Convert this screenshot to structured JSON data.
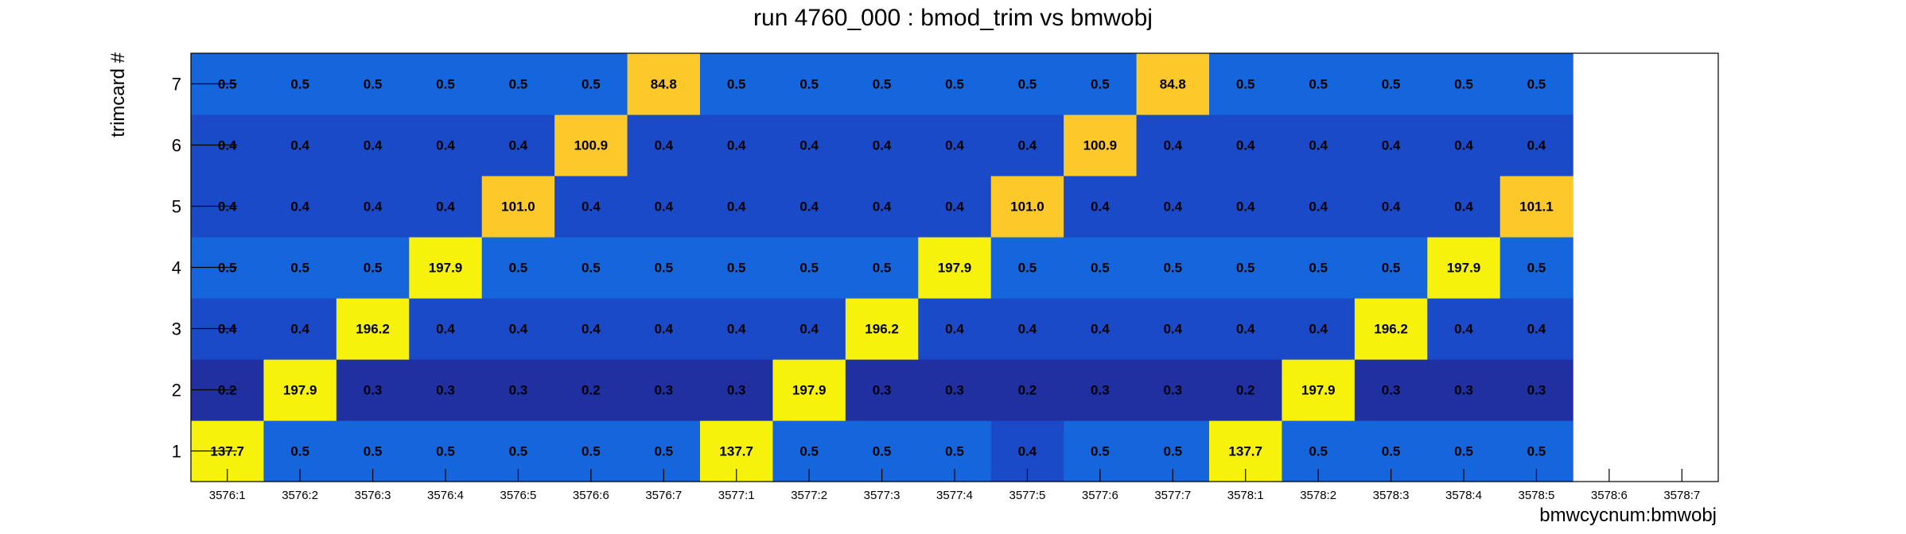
{
  "chart_data": {
    "type": "heatmap",
    "title": "run 4760_000 : bmod_trim vs bmwobj",
    "xlabel": "bmwcycnum:bmwobj",
    "ylabel": "trimcard #",
    "x_categories": [
      "3576:1",
      "3576:2",
      "3576:3",
      "3576:4",
      "3576:5",
      "3576:6",
      "3576:7",
      "3577:1",
      "3577:2",
      "3577:3",
      "3577:4",
      "3577:5",
      "3577:6",
      "3577:7",
      "3578:1",
      "3578:2",
      "3578:3",
      "3578:4",
      "3578:5",
      "3578:6",
      "3578:7"
    ],
    "y_categories": [
      "1",
      "2",
      "3",
      "4",
      "5",
      "6",
      "7"
    ],
    "values": [
      [
        137.7,
        0.5,
        0.5,
        0.5,
        0.5,
        0.5,
        0.5,
        137.7,
        0.5,
        0.5,
        0.5,
        0.4,
        0.5,
        0.5,
        137.7,
        0.5,
        0.5,
        0.5,
        0.5,
        null,
        null
      ],
      [
        0.2,
        197.9,
        0.3,
        0.3,
        0.3,
        0.2,
        0.3,
        0.3,
        197.9,
        0.3,
        0.3,
        0.2,
        0.3,
        0.3,
        0.2,
        197.9,
        0.3,
        0.3,
        0.3,
        null,
        null
      ],
      [
        0.4,
        0.4,
        196.2,
        0.4,
        0.4,
        0.4,
        0.4,
        0.4,
        0.4,
        196.2,
        0.4,
        0.4,
        0.4,
        0.4,
        0.4,
        0.4,
        196.2,
        0.4,
        0.4,
        null,
        null
      ],
      [
        0.5,
        0.5,
        0.5,
        197.9,
        0.5,
        0.5,
        0.5,
        0.5,
        0.5,
        0.5,
        197.9,
        0.5,
        0.5,
        0.5,
        0.5,
        0.5,
        0.5,
        197.9,
        0.5,
        null,
        null
      ],
      [
        0.4,
        0.4,
        0.4,
        0.4,
        101.0,
        0.4,
        0.4,
        0.4,
        0.4,
        0.4,
        0.4,
        101.0,
        0.4,
        0.4,
        0.4,
        0.4,
        0.4,
        0.4,
        101.1,
        null,
        null
      ],
      [
        0.4,
        0.4,
        0.4,
        0.4,
        0.4,
        100.9,
        0.4,
        0.4,
        0.4,
        0.4,
        0.4,
        0.4,
        100.9,
        0.4,
        0.4,
        0.4,
        0.4,
        0.4,
        0.4,
        null,
        null
      ],
      [
        0.5,
        0.5,
        0.5,
        0.5,
        0.5,
        0.5,
        84.8,
        0.5,
        0.5,
        0.5,
        0.5,
        0.5,
        0.5,
        84.8,
        0.5,
        0.5,
        0.5,
        0.5,
        0.5,
        null,
        null
      ]
    ],
    "colors": {
      "very_low": "#2030a0",
      "low": "#1a4ac8",
      "mid_low": "#1565dc",
      "orange": "#fcc82a",
      "yellow": "#f6f20c"
    },
    "grid": false,
    "legend": "none"
  }
}
